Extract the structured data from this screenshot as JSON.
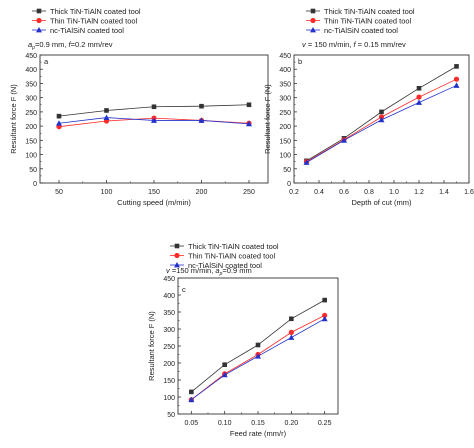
{
  "chart_data": [
    {
      "type": "line",
      "panel_label": "a",
      "condition": "a_p=0.9 mm, f=0.2 mm/rev",
      "xlabel": "Cutting speed (m/min)",
      "ylabel": "Resultant force F (N)",
      "x": [
        50,
        100,
        150,
        200,
        250
      ],
      "xlim": [
        30,
        270
      ],
      "ylim": [
        0,
        450
      ],
      "xticks": [
        50,
        100,
        150,
        200,
        250
      ],
      "yticks": [
        0,
        50,
        100,
        150,
        200,
        250,
        300,
        350,
        400,
        450
      ],
      "legend_position": "top-left",
      "series": [
        {
          "name": "Thick TiN-TiAlN coated tool",
          "marker": "square",
          "color": "#333333",
          "values": [
            235,
            255,
            268,
            270,
            275
          ]
        },
        {
          "name": "Thin TiN-TiAlN coated tool",
          "marker": "circle",
          "color": "#ff2a2a",
          "values": [
            198,
            218,
            228,
            220,
            210
          ]
        },
        {
          "name": "nc-TiAlSiN coated tool",
          "marker": "triangle",
          "color": "#2233cc",
          "values": [
            210,
            230,
            220,
            220,
            208
          ]
        }
      ]
    },
    {
      "type": "line",
      "panel_label": "b",
      "condition": "v = 150 m/min, f = 0.15 mm/rev",
      "xlabel": "Depth of cut (mm)",
      "ylabel": "Resultant force F (N)",
      "x": [
        0.3,
        0.6,
        0.9,
        1.2,
        1.5
      ],
      "xlim": [
        0.2,
        1.6
      ],
      "ylim": [
        0,
        450
      ],
      "xticks": [
        0.2,
        0.4,
        0.6,
        0.8,
        1.0,
        1.2,
        1.4,
        1.6
      ],
      "yticks": [
        0,
        50,
        100,
        150,
        200,
        250,
        300,
        350,
        400,
        450
      ],
      "legend_position": "top-left",
      "series": [
        {
          "name": "Thick TiN-TiAlN coated tool",
          "marker": "square",
          "color": "#333333",
          "values": [
            78,
            157,
            250,
            333,
            410
          ]
        },
        {
          "name": "Thin TiN-TiAlN coated tool",
          "marker": "circle",
          "color": "#ff2a2a",
          "values": [
            75,
            152,
            232,
            302,
            365
          ]
        },
        {
          "name": "nc-TiAlSiN coated tool",
          "marker": "triangle",
          "color": "#2233cc",
          "values": [
            72,
            150,
            222,
            283,
            343
          ]
        }
      ]
    },
    {
      "type": "line",
      "panel_label": "c",
      "condition": "v =150 m/min, a_p=0.9 mm",
      "xlabel": "Feed rate (mm/r)",
      "ylabel": "Resultant force F (N)",
      "x": [
        0.05,
        0.1,
        0.15,
        0.2,
        0.25
      ],
      "xlim": [
        0.03,
        0.27
      ],
      "ylim": [
        50,
        450
      ],
      "xticks": [
        0.05,
        0.1,
        0.15,
        0.2,
        0.25
      ],
      "yticks": [
        50,
        100,
        150,
        200,
        250,
        300,
        350,
        400,
        450
      ],
      "legend_position": "top-left",
      "series": [
        {
          "name": "Thick TiN-TiAlN coated tool",
          "marker": "square",
          "color": "#333333",
          "values": [
            115,
            195,
            253,
            330,
            385
          ]
        },
        {
          "name": "Thin TiN-TiAlN coated tool",
          "marker": "circle",
          "color": "#ff2a2a",
          "values": [
            92,
            168,
            225,
            290,
            340
          ]
        },
        {
          "name": "nc-TiAlSiN coated tool",
          "marker": "triangle",
          "color": "#2233cc",
          "values": [
            92,
            165,
            220,
            275,
            330
          ]
        }
      ]
    }
  ],
  "ticklabels": {
    "a_x": [
      "50",
      "100",
      "150",
      "200",
      "250"
    ],
    "a_y": [
      "0",
      "50",
      "100",
      "150",
      "200",
      "250",
      "300",
      "350",
      "400",
      "450"
    ],
    "b_x": [
      "0.2",
      "0.4",
      "0.6",
      "0.8",
      "1.0",
      "1.2",
      "1.4",
      "1.6"
    ],
    "b_y": [
      "0",
      "50",
      "100",
      "150",
      "200",
      "250",
      "300",
      "350",
      "400",
      "450"
    ],
    "c_x": [
      "0.05",
      "0.10",
      "0.15",
      "0.20",
      "0.25"
    ],
    "c_y": [
      "50",
      "100",
      "150",
      "200",
      "250",
      "300",
      "350",
      "400",
      "450"
    ]
  },
  "annotation_text": {
    "a": {
      "p1": "a",
      "sub": "p",
      "p2": "=0.9 mm, ",
      "f": "f",
      "p3": "=0.2 mm/rev"
    },
    "b": {
      "v": "v",
      "p1": " = 150 m/min, ",
      "f": "f",
      "p2": " = 0.15 mm/rev"
    },
    "c": {
      "v": "v",
      "p1": " =150 m/min, ",
      "a": "a",
      "sub": "p",
      "p2": "=0.9 mm"
    }
  }
}
